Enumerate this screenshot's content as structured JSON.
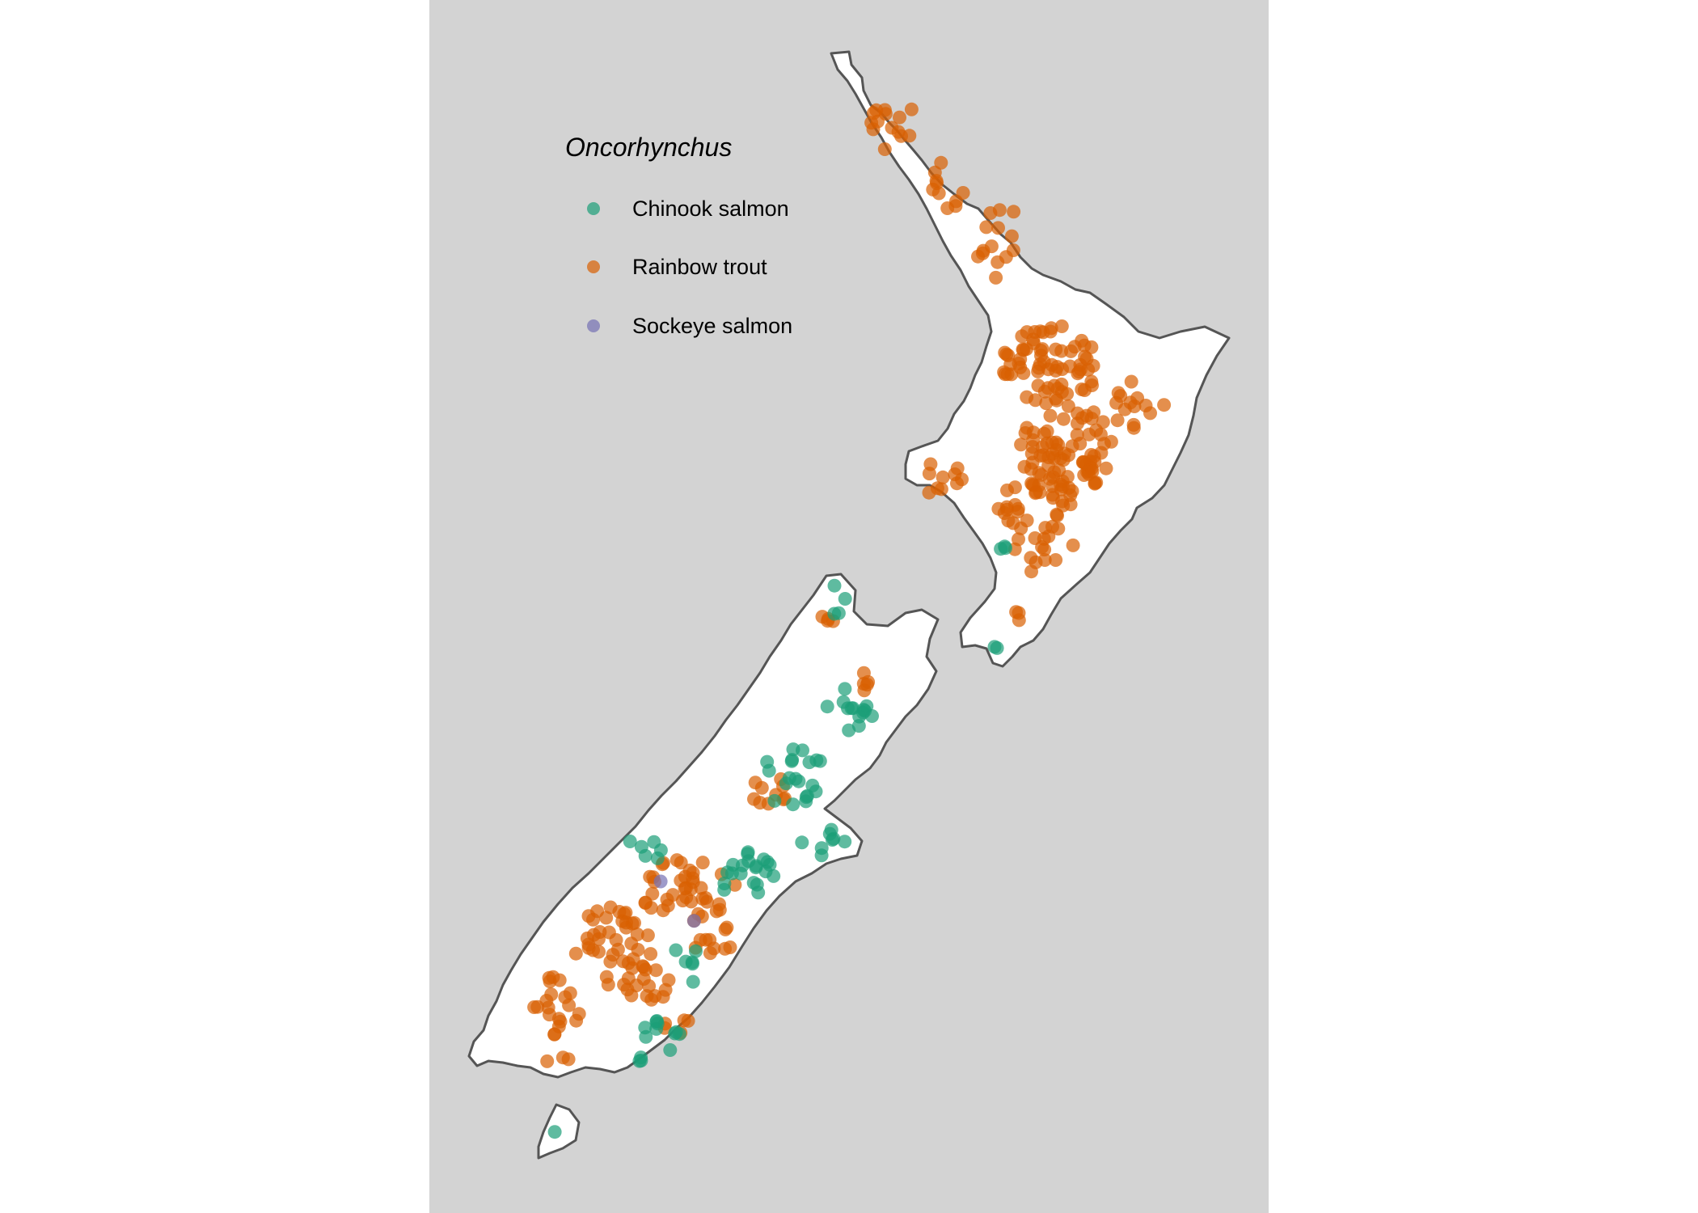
{
  "legend": {
    "title": "Oncorhynchus",
    "items": [
      {
        "label": "Chinook salmon",
        "color": "#1b9e77"
      },
      {
        "label": "Rainbow trout",
        "color": "#d95f02"
      },
      {
        "label": "Sockeye salmon",
        "color": "#7570b3"
      }
    ]
  },
  "colors": {
    "panel_background": "#d3d3d3",
    "land_fill": "#ffffff",
    "coastline": "#555555"
  },
  "point_opacity": 0.7
}
